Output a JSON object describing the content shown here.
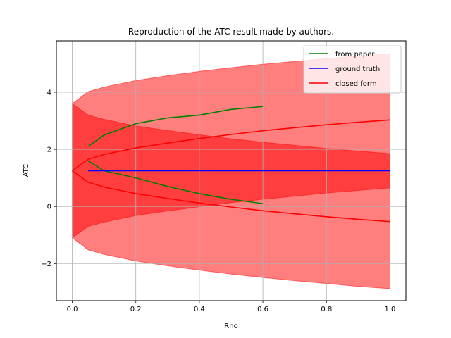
{
  "chart_data": {
    "type": "line",
    "title": "Reproduction of the ATC result made by authors.",
    "xlabel": "Rho",
    "ylabel": "ATC",
    "xlim": [
      -0.05,
      1.05
    ],
    "ylim": [
      -3.3,
      5.8
    ],
    "xticks": [
      0.0,
      0.2,
      0.4,
      0.6,
      0.8,
      1.0
    ],
    "xtick_labels": [
      "0.0",
      "0.2",
      "0.4",
      "0.6",
      "0.8",
      "1.0"
    ],
    "yticks": [
      -2,
      0,
      2,
      4
    ],
    "ytick_labels": [
      "−2",
      "0",
      "2",
      "4"
    ],
    "grid": true,
    "legend_position": "top-right",
    "colors": {
      "from_paper": "#008000",
      "ground_truth": "#0000ff",
      "closed_form": "#ff0000",
      "band": "#ff0000"
    },
    "series": [
      {
        "name": "from paper",
        "color": "#008000",
        "lines": [
          {
            "x": [
              0.05,
              0.1,
              0.2,
              0.3,
              0.4,
              0.5,
              0.6
            ],
            "y": [
              2.1,
              2.5,
              2.9,
              3.1,
              3.2,
              3.4,
              3.5
            ]
          },
          {
            "x": [
              0.05,
              0.1,
              0.2,
              0.3,
              0.4,
              0.5,
              0.6
            ],
            "y": [
              1.6,
              1.25,
              1.0,
              0.7,
              0.45,
              0.25,
              0.1
            ]
          }
        ]
      },
      {
        "name": "ground truth",
        "color": "#0000ff",
        "lines": [
          {
            "x": [
              0.05,
              1.0
            ],
            "y": [
              1.25,
              1.25
            ]
          }
        ]
      },
      {
        "name": "closed form",
        "color": "#ff0000",
        "lines": [
          {
            "x": [
              0.0,
              0.05,
              0.1,
              0.2,
              0.3,
              0.4,
              0.5,
              0.6,
              0.7,
              0.8,
              0.9,
              1.0
            ],
            "y": [
              1.25,
              1.65,
              1.82,
              2.05,
              2.22,
              2.38,
              2.52,
              2.65,
              2.76,
              2.86,
              2.95,
              3.03
            ]
          },
          {
            "x": [
              0.0,
              0.05,
              0.1,
              0.2,
              0.3,
              0.4,
              0.5,
              0.6,
              0.7,
              0.8,
              0.9,
              1.0
            ],
            "y": [
              1.25,
              0.85,
              0.68,
              0.45,
              0.28,
              0.12,
              -0.02,
              -0.15,
              -0.26,
              -0.36,
              -0.45,
              -0.53
            ]
          }
        ]
      }
    ],
    "bands": [
      {
        "x": [
          0.0,
          0.05,
          0.1,
          0.2,
          0.3,
          0.4,
          0.5,
          0.6,
          0.7,
          0.8,
          0.9,
          1.0
        ],
        "upper": [
          3.6,
          4.02,
          4.18,
          4.41,
          4.58,
          4.73,
          4.86,
          4.98,
          5.08,
          5.18,
          5.27,
          5.35
        ],
        "lower": [
          -1.1,
          -0.7,
          -0.55,
          -0.32,
          -0.16,
          -0.01,
          0.13,
          0.25,
          0.36,
          0.47,
          0.56,
          0.65
        ]
      },
      {
        "x": [
          0.0,
          0.05,
          0.1,
          0.2,
          0.3,
          0.4,
          0.5,
          0.6,
          0.7,
          0.8,
          0.9,
          1.0
        ],
        "upper": [
          3.6,
          3.2,
          3.05,
          2.82,
          2.66,
          2.51,
          2.37,
          2.25,
          2.14,
          2.03,
          1.94,
          1.85
        ],
        "lower": [
          -1.1,
          -1.52,
          -1.68,
          -1.91,
          -2.08,
          -2.23,
          -2.37,
          -2.49,
          -2.6,
          -2.7,
          -2.8,
          -2.88
        ]
      }
    ]
  }
}
